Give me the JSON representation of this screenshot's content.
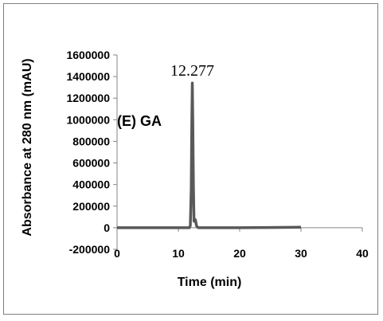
{
  "chart_data": {
    "type": "line",
    "title": "",
    "panel_label": "(E) GA",
    "xlabel": "Time (min)",
    "ylabel": "Absorbance at 280 nm (mAU)",
    "xlim": [
      0,
      40
    ],
    "ylim": [
      -200000,
      1600000
    ],
    "x_ticks": [
      0,
      10,
      20,
      30,
      40
    ],
    "y_ticks": [
      -200000,
      0,
      200000,
      400000,
      600000,
      800000,
      1000000,
      1200000,
      1400000,
      1600000
    ],
    "grid": false,
    "legend": "none",
    "line_color": "#595959",
    "annotations": [
      {
        "text": "12.277",
        "x": 12.277,
        "y": 1340000
      }
    ],
    "series": [
      {
        "x": [
          0,
          5,
          10,
          11.8,
          11.95,
          12.1,
          12.2,
          12.277,
          12.35,
          12.45,
          12.55,
          12.65,
          12.8,
          12.95,
          13.1,
          13.3,
          14,
          20,
          25,
          30
        ],
        "values": [
          0,
          0,
          0,
          0,
          20000,
          350000,
          1000000,
          1340000,
          1000000,
          400000,
          60000,
          80000,
          70000,
          20000,
          5000,
          0,
          0,
          0,
          2000,
          5000
        ]
      }
    ]
  }
}
